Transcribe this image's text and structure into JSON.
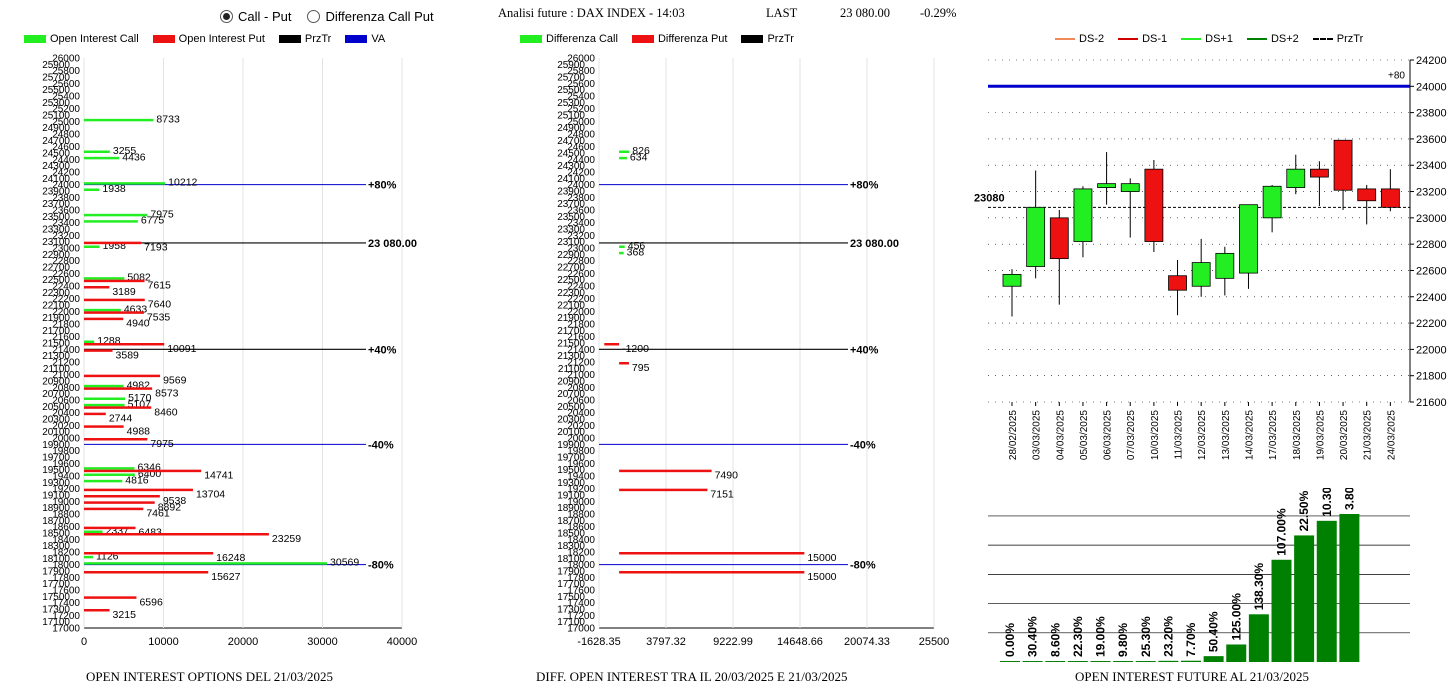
{
  "header": {
    "radio_options": [
      {
        "label": "Call - Put",
        "selected": true
      },
      {
        "label": "Differenza Call Put",
        "selected": false
      }
    ],
    "title": "Analisi future : DAX INDEX - 14:03",
    "last_label": "LAST",
    "last_value": "23 080.00",
    "change": "-0.29%"
  },
  "colors": {
    "green": "#22ee22",
    "red": "#ee1111",
    "black": "#000000",
    "blue": "#0000cc",
    "dark_green": "#008000"
  },
  "chart_data": [
    {
      "type": "bar",
      "orientation": "horizontal",
      "title": "OPEN INTEREST OPTIONS DEL 21/03/2025",
      "legend": [
        "Open Interest Call",
        "Open Interest Put",
        "PrzTr",
        "VA"
      ],
      "xlim": [
        0,
        40000
      ],
      "x_ticks": [
        "0",
        "10000",
        "20000",
        "30000",
        "40000"
      ],
      "strike_range": [
        17000,
        26000
      ],
      "strike_step": 100,
      "reference_lines": [
        {
          "strike": 24000,
          "label": "+80%",
          "color": "blue"
        },
        {
          "strike": 23080,
          "label": "23 080.00",
          "color": "black"
        },
        {
          "strike": 21400,
          "label": "+40%",
          "color": "black"
        },
        {
          "strike": 19900,
          "label": "-40%",
          "color": "blue"
        },
        {
          "strike": 18000,
          "label": "-80%",
          "color": "blue"
        }
      ],
      "call": [
        {
          "strike": 25000,
          "value": 8733
        },
        {
          "strike": 24500,
          "value": 3255
        },
        {
          "strike": 24400,
          "value": 4436
        },
        {
          "strike": 24000,
          "value": 10212
        },
        {
          "strike": 23900,
          "value": 1938
        },
        {
          "strike": 23500,
          "value": 7975
        },
        {
          "strike": 23400,
          "value": 6775
        },
        {
          "strike": 23000,
          "value": 1958
        },
        {
          "strike": 22500,
          "value": 5082
        },
        {
          "strike": 22000,
          "value": 4633
        },
        {
          "strike": 21500,
          "value": 1288
        },
        {
          "strike": 20800,
          "value": 4982
        },
        {
          "strike": 20600,
          "value": 5170
        },
        {
          "strike": 20500,
          "value": 5107
        },
        {
          "strike": 19500,
          "value": 6346
        },
        {
          "strike": 19400,
          "value": 6400
        },
        {
          "strike": 19300,
          "value": 4816
        },
        {
          "strike": 18500,
          "value": 2337
        },
        {
          "strike": 18100,
          "value": 1126
        },
        {
          "strike": 18000,
          "value": 30569
        }
      ],
      "put": [
        {
          "strike": 23100,
          "value": 7193
        },
        {
          "strike": 22500,
          "value": 7615
        },
        {
          "strike": 22400,
          "value": 3189
        },
        {
          "strike": 22200,
          "value": 7640
        },
        {
          "strike": 22000,
          "value": 7535
        },
        {
          "strike": 21900,
          "value": 4940
        },
        {
          "strike": 21500,
          "value": 10091
        },
        {
          "strike": 21400,
          "value": 3589
        },
        {
          "strike": 21000,
          "value": 9569
        },
        {
          "strike": 20800,
          "value": 8573
        },
        {
          "strike": 20500,
          "value": 8460
        },
        {
          "strike": 20400,
          "value": 2744
        },
        {
          "strike": 20200,
          "value": 4988
        },
        {
          "strike": 20000,
          "value": 7975
        },
        {
          "strike": 19500,
          "value": 14741
        },
        {
          "strike": 19200,
          "value": 13704
        },
        {
          "strike": 19100,
          "value": 9538
        },
        {
          "strike": 19000,
          "value": 8892
        },
        {
          "strike": 18900,
          "value": 7461
        },
        {
          "strike": 18600,
          "value": 6483
        },
        {
          "strike": 18500,
          "value": 23259
        },
        {
          "strike": 18200,
          "value": 16248
        },
        {
          "strike": 17900,
          "value": 15627
        },
        {
          "strike": 17500,
          "value": 6596
        },
        {
          "strike": 17300,
          "value": 3215
        }
      ]
    },
    {
      "type": "bar",
      "orientation": "horizontal",
      "title": "DIFF. OPEN INTEREST TRA IL 20/03/2025 E 21/03/2025",
      "legend": [
        "Differenza Call",
        "Differenza Put",
        "PrzTr"
      ],
      "xlim": [
        -1628.35,
        25500
      ],
      "x_ticks": [
        "-1628.35",
        "3797.32",
        "9222.99",
        "14648.66",
        "20074.33",
        "25500"
      ],
      "strike_range": [
        17000,
        26000
      ],
      "reference_lines": [
        {
          "strike": 24000,
          "label": "+80%",
          "color": "blue"
        },
        {
          "strike": 23080,
          "label": "23 080.00",
          "color": "black"
        },
        {
          "strike": 21400,
          "label": "+40%",
          "color": "black"
        },
        {
          "strike": 19900,
          "label": "-40%",
          "color": "blue"
        },
        {
          "strike": 18000,
          "label": "-80%",
          "color": "blue"
        }
      ],
      "call": [
        {
          "strike": 24500,
          "value": 826
        },
        {
          "strike": 24400,
          "value": 634
        },
        {
          "strike": 23000,
          "value": 456
        },
        {
          "strike": 22900,
          "value": 368
        }
      ],
      "put": [
        {
          "strike": 21500,
          "value": -1200
        },
        {
          "strike": 21200,
          "value": 795
        },
        {
          "strike": 19500,
          "value": 7490
        },
        {
          "strike": 19200,
          "value": 7151
        },
        {
          "strike": 18200,
          "value": 15000
        },
        {
          "strike": 17900,
          "value": 15000
        }
      ]
    },
    {
      "type": "candlestick",
      "legend": [
        "DS-2",
        "DS-1",
        "DS+1",
        "DS+2",
        "PrzTr"
      ],
      "ylim": [
        21600,
        24200
      ],
      "y_ticks": [
        "21600",
        "21800",
        "22000",
        "22200",
        "22400",
        "22600",
        "22800",
        "23000",
        "23200",
        "23400",
        "23600",
        "23800",
        "24000",
        "24200"
      ],
      "dates": [
        "28/02/2025",
        "03/03/2025",
        "04/03/2025",
        "05/03/2025",
        "06/03/2025",
        "07/03/2025",
        "10/03/2025",
        "11/03/2025",
        "12/03/2025",
        "13/03/2025",
        "14/03/2025",
        "17/03/2025",
        "18/03/2025",
        "19/03/2025",
        "20/03/2025",
        "21/03/2025",
        "24/03/2025"
      ],
      "candles": [
        {
          "open": 22480,
          "close": 22570,
          "high": 22610,
          "low": 22250
        },
        {
          "open": 22630,
          "close": 23080,
          "high": 23360,
          "low": 22540
        },
        {
          "open": 23000,
          "close": 22690,
          "high": 23060,
          "low": 22340
        },
        {
          "open": 22820,
          "close": 23220,
          "high": 23240,
          "low": 22700
        },
        {
          "open": 23230,
          "close": 23260,
          "high": 23500,
          "low": 23100
        },
        {
          "open": 23200,
          "close": 23260,
          "high": 23300,
          "low": 22850
        },
        {
          "open": 23370,
          "close": 22820,
          "high": 23440,
          "low": 22740
        },
        {
          "open": 22560,
          "close": 22450,
          "high": 22680,
          "low": 22260
        },
        {
          "open": 22480,
          "close": 22660,
          "high": 22840,
          "low": 22400
        },
        {
          "open": 22540,
          "close": 22730,
          "high": 22780,
          "low": 22410
        },
        {
          "open": 22580,
          "close": 23100,
          "high": 23100,
          "low": 22460
        },
        {
          "open": 23000,
          "close": 23240,
          "high": 23250,
          "low": 22890
        },
        {
          "open": 23230,
          "close": 23370,
          "high": 23480,
          "low": 23180
        },
        {
          "open": 23370,
          "close": 23310,
          "high": 23430,
          "low": 23090
        },
        {
          "open": 23590,
          "close": 23210,
          "high": 23590,
          "low": 23060
        },
        {
          "open": 23220,
          "close": 23130,
          "high": 23250,
          "low": 22950
        },
        {
          "open": 23220,
          "close": 23080,
          "high": 23370,
          "low": 23050
        }
      ],
      "price_line": 23080,
      "price_label": "23080",
      "upper_line": 24000,
      "upper_label": "+80"
    },
    {
      "type": "bar",
      "title": "OPEN INTEREST FUTURE AL 21/03/2025",
      "labels": [
        "0.00%",
        "30.40%",
        "8.60%",
        "22.30%",
        "19.00%",
        "9.80%",
        "25.30%",
        "23.20%",
        "7.70%",
        "50.40%",
        "125.00%",
        "138.30%",
        "107.00%",
        "22.50%",
        "10.30%",
        "3.80%"
      ],
      "values": [
        0,
        0.3,
        0.3,
        0.3,
        0.3,
        0.3,
        1,
        1.2,
        1.3,
        6,
        18,
        49,
        105,
        130,
        145,
        152
      ]
    }
  ]
}
